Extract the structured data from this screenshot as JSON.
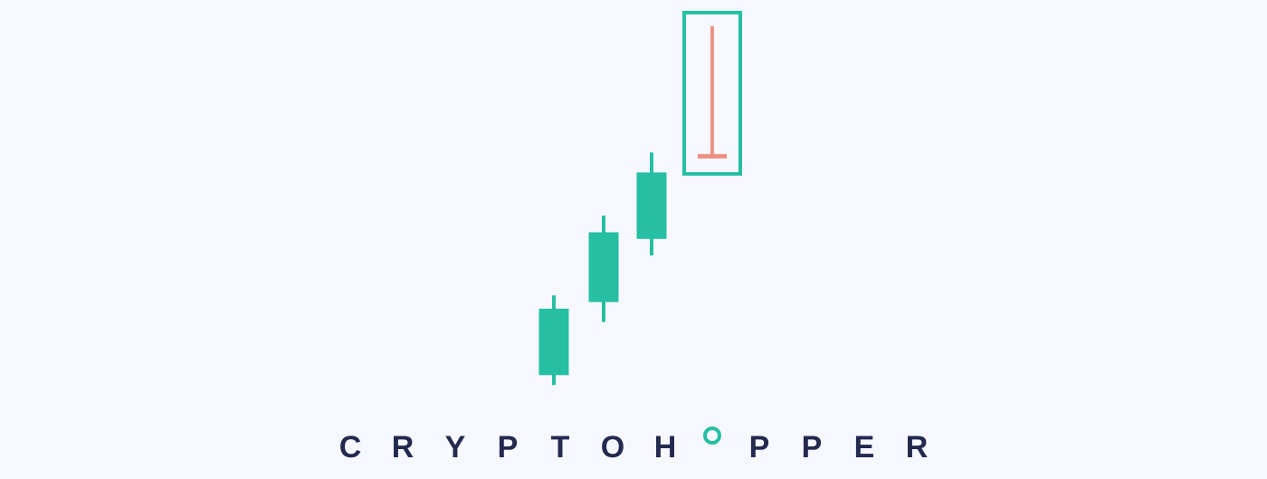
{
  "colors": {
    "background": "#f6f8fd",
    "bullish": "#26bfa3",
    "bearish": "#ee9185",
    "highlight": "#26bfa3",
    "brand_text": "#232a4f",
    "brand_accent": "#26bfa3"
  },
  "chart_data": {
    "type": "candlestick",
    "title": "",
    "xlabel": "",
    "ylabel": "",
    "grid": false,
    "legend": "none",
    "ylim": [
      0,
      100
    ],
    "candles": [
      {
        "open": 13,
        "close": 33,
        "high": 37,
        "low": 10,
        "direction": "up"
      },
      {
        "open": 35,
        "close": 56,
        "high": 61,
        "low": 29,
        "direction": "up"
      },
      {
        "open": 54,
        "close": 74,
        "high": 80,
        "low": 49,
        "direction": "up"
      },
      {
        "open": 79,
        "close": 79,
        "high": 118,
        "low": 79,
        "direction": "down",
        "pattern": "gravestone-doji",
        "highlighted": true
      }
    ]
  },
  "brand": {
    "letters": [
      "C",
      "R",
      "Y",
      "P",
      "T",
      "O",
      "H",
      "O",
      "P",
      "P",
      "E",
      "R"
    ],
    "accent_index": 7,
    "icon": "ring-icon"
  }
}
